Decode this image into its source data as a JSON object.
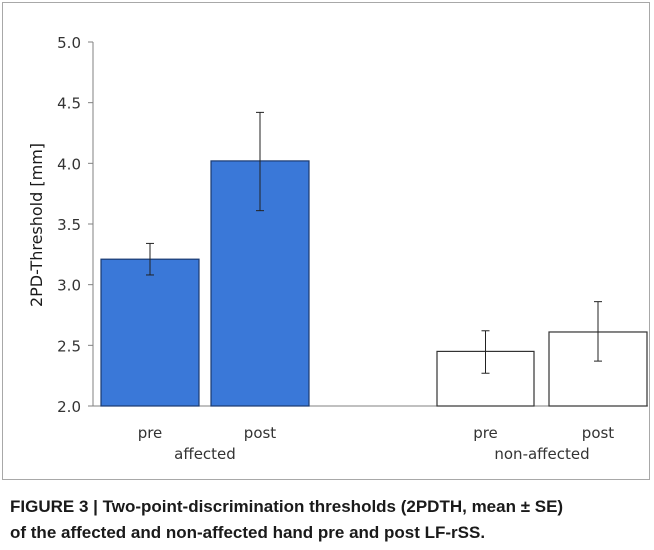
{
  "chart_data": {
    "type": "bar",
    "ylabel": "2PD-Threshold [mm]",
    "ylim": [
      2.0,
      5.0
    ],
    "yticks": [
      "2.0",
      "2.5",
      "3.0",
      "3.5",
      "4.0",
      "4.5",
      "5.0"
    ],
    "groups": [
      {
        "name": "affected",
        "bars": [
          {
            "label": "pre",
            "value": 3.21,
            "err_low": 3.08,
            "err_high": 3.34
          },
          {
            "label": "post",
            "value": 4.02,
            "err_low": 3.61,
            "err_high": 4.42
          }
        ]
      },
      {
        "name": "non-affected",
        "bars": [
          {
            "label": "pre",
            "value": 2.45,
            "err_low": 2.27,
            "err_high": 2.62
          },
          {
            "label": "post",
            "value": 2.61,
            "err_low": 2.37,
            "err_high": 2.86
          }
        ]
      }
    ],
    "colors": {
      "affected": "#3a78d8",
      "affected_edge": "#1a3a70",
      "non_affected": "#ffffff",
      "non_affected_edge": "#333333"
    }
  },
  "caption": {
    "figure_label": "FIGURE 3 | ",
    "text_line1": "Two-point-discrimination thresholds (2PDTH, mean ± SE)",
    "text_line2": "of the affected and non-affected hand pre and post LF-rSS",
    "end": "."
  }
}
